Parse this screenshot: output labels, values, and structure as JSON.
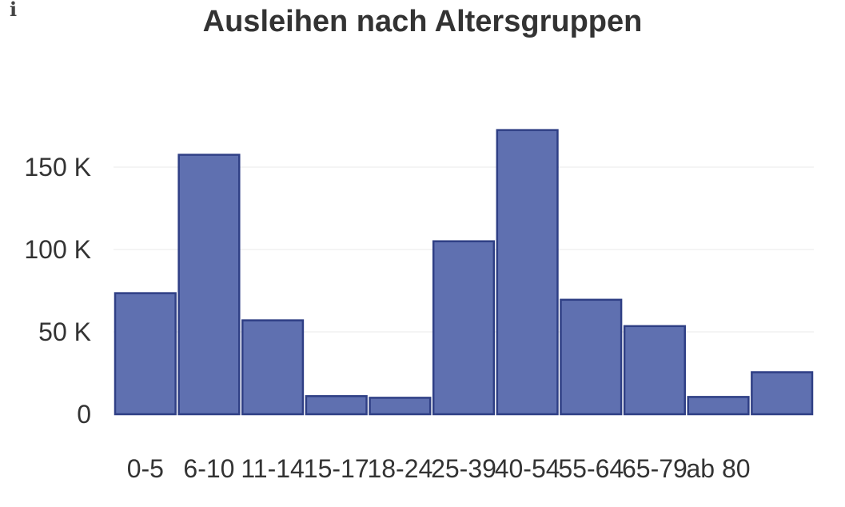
{
  "info_icon": "i",
  "chart_data": {
    "type": "bar",
    "title": "Ausleihen nach Altersgruppen",
    "xlabel": "",
    "ylabel": "",
    "categories": [
      "0-5",
      "6-10",
      "11-14",
      "15-17",
      "18-24",
      "25-39",
      "40-54",
      "55-64",
      "65-79",
      "ab 80",
      ""
    ],
    "values": [
      73500,
      157500,
      57000,
      11000,
      10000,
      105000,
      172500,
      69500,
      53500,
      10500,
      25500
    ],
    "yticks": [
      0,
      50000,
      100000,
      150000
    ],
    "ytick_labels": [
      "0",
      "50 K",
      "100 K",
      "150 K"
    ],
    "ylim": [
      0,
      190000
    ],
    "grid": true,
    "colors": {
      "bar_fill": "#5f70b0",
      "bar_stroke": "#2f3f85"
    }
  }
}
